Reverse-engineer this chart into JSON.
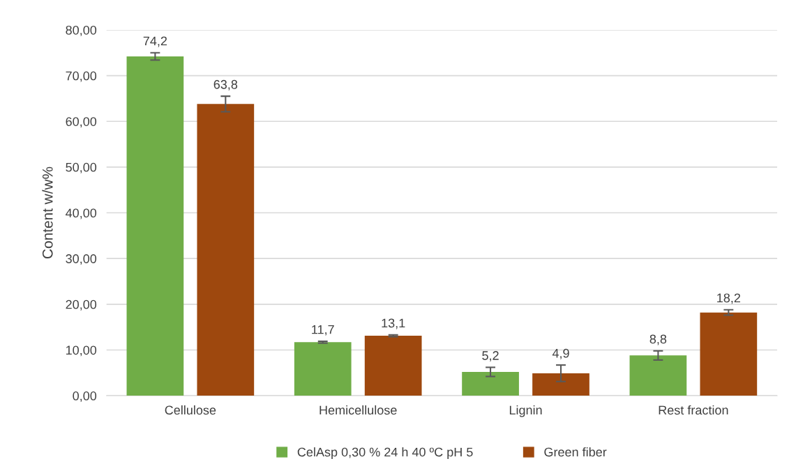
{
  "chart_data": {
    "type": "bar",
    "ylabel": "Content w/w%",
    "categories": [
      "Cellulose",
      "Hemicellulose",
      "Lignin",
      "Rest fraction"
    ],
    "series": [
      {
        "name": "CelAsp 0,30 % 24 h 40 ºC pH 5",
        "color": "#70ad47",
        "values": [
          74.2,
          11.7,
          5.2,
          8.8
        ],
        "errors": [
          0.8,
          0.2,
          1.0,
          1.0
        ],
        "value_labels": [
          "74,2",
          "11,7",
          "5,2",
          "8,8"
        ]
      },
      {
        "name": "Green fiber",
        "color": "#9e480e",
        "values": [
          63.8,
          13.1,
          4.9,
          18.2
        ],
        "errors": [
          1.7,
          0.2,
          1.8,
          0.6
        ],
        "value_labels": [
          "63,8",
          "13,1",
          "4,9",
          "18,2"
        ]
      }
    ],
    "ylim": [
      0,
      80
    ],
    "yticks": [
      {
        "value": 0,
        "label": "0,00"
      },
      {
        "value": 10,
        "label": "10,00"
      },
      {
        "value": 20,
        "label": "20,00"
      },
      {
        "value": 30,
        "label": "30,00"
      },
      {
        "value": 40,
        "label": "40,00"
      },
      {
        "value": 50,
        "label": "50,00"
      },
      {
        "value": 60,
        "label": "60,00"
      },
      {
        "value": 70,
        "label": "70,00"
      },
      {
        "value": 80,
        "label": "80,00"
      }
    ],
    "grid": "y",
    "legend": "bottom"
  }
}
